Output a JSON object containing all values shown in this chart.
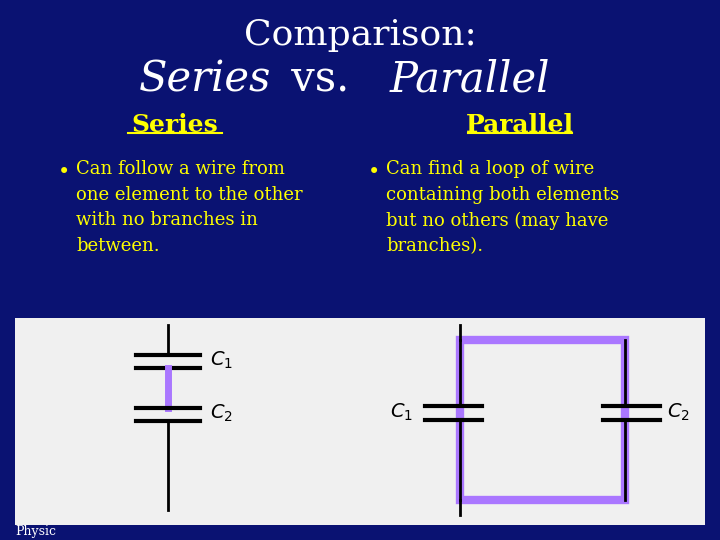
{
  "bg_color": "#0a1272",
  "white_box_color": "#f0f0f0",
  "title_line1": "Comparison:",
  "title_line2_italic_part1": "Series",
  "title_line2_regular": " vs. ",
  "title_line2_italic_part2": "Parallel",
  "title_color": "#ffffff",
  "series_heading": "Series",
  "parallel_heading": "Parallel",
  "heading_color": "#ffff00",
  "bullet_color": "#ffff00",
  "series_bullet_line1": "Can follow a wire from",
  "series_bullet_line2": "one element to the other",
  "series_bullet_line3": "with no branches in",
  "series_bullet_line4": "between.",
  "parallel_bullet_line1": "Can find a loop of wire",
  "parallel_bullet_line2": "containing both elements",
  "parallel_bullet_line3": "but no others (may have",
  "parallel_bullet_line4": "branches).",
  "capacitor_color": "#000000",
  "wire_color": "#000000",
  "highlight_color": "#aa77ff",
  "footer_text": "Physic",
  "footer_color": "#ffffff"
}
